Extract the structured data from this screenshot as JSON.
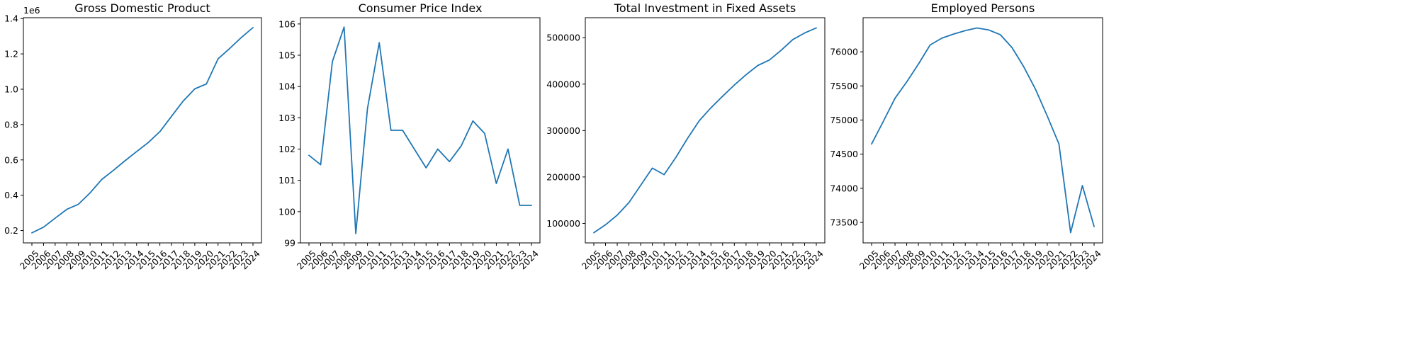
{
  "chart_data": [
    {
      "type": "line",
      "title": "Gross Domestic Product",
      "xlabel": "",
      "ylabel": "",
      "y_multiplier_label": "1e6",
      "grid": false,
      "x": [
        "2005",
        "2006",
        "2007",
        "2008",
        "2009",
        "2010",
        "2011",
        "2012",
        "2013",
        "2014",
        "2015",
        "2016",
        "2017",
        "2018",
        "2019",
        "2020",
        "2021",
        "2022",
        "2023",
        "2024"
      ],
      "values": [
        0.187,
        0.219,
        0.27,
        0.32,
        0.349,
        0.413,
        0.489,
        0.54,
        0.595,
        0.647,
        0.698,
        0.76,
        0.847,
        0.933,
        1.002,
        1.03,
        1.172,
        1.231,
        1.293,
        1.349
      ],
      "ylim": [
        0.13,
        1.405
      ],
      "yticks": [
        0.2,
        0.4,
        0.6,
        0.8,
        1.0,
        1.2,
        1.4
      ],
      "ytick_labels": [
        "0.2",
        "0.4",
        "0.6",
        "0.8",
        "1.0",
        "1.2",
        "1.4"
      ]
    },
    {
      "type": "line",
      "title": "Consumer Price Index",
      "xlabel": "",
      "ylabel": "",
      "grid": false,
      "x": [
        "2005",
        "2006",
        "2007",
        "2008",
        "2009",
        "2010",
        "2011",
        "2012",
        "2013",
        "2014",
        "2015",
        "2016",
        "2017",
        "2018",
        "2019",
        "2020",
        "2021",
        "2022",
        "2023",
        "2024"
      ],
      "values": [
        101.8,
        101.5,
        104.8,
        105.9,
        99.3,
        103.3,
        105.4,
        102.6,
        102.6,
        102.0,
        101.4,
        102.0,
        101.6,
        102.1,
        102.9,
        102.5,
        100.9,
        102.0,
        100.2,
        100.2
      ],
      "ylim": [
        99.0,
        106.2
      ],
      "yticks": [
        99,
        100,
        101,
        102,
        103,
        104,
        105,
        106
      ],
      "ytick_labels": [
        "99",
        "100",
        "101",
        "102",
        "103",
        "104",
        "105",
        "106"
      ]
    },
    {
      "type": "line",
      "title": "Total Investment in Fixed Assets",
      "xlabel": "",
      "ylabel": "",
      "grid": false,
      "x": [
        "2005",
        "2006",
        "2007",
        "2008",
        "2009",
        "2010",
        "2011",
        "2012",
        "2013",
        "2014",
        "2015",
        "2016",
        "2017",
        "2018",
        "2019",
        "2020",
        "2021",
        "2022",
        "2023",
        "2024"
      ],
      "values": [
        80000,
        97000,
        118000,
        145000,
        182000,
        219000,
        205000,
        242000,
        283000,
        321000,
        349000,
        374000,
        398000,
        420000,
        440000,
        452000,
        473000,
        496000,
        510000,
        521000
      ],
      "ylim": [
        58000,
        543000
      ],
      "yticks": [
        100000,
        200000,
        300000,
        400000,
        500000
      ],
      "ytick_labels": [
        "100000",
        "200000",
        "300000",
        "400000",
        "500000"
      ]
    },
    {
      "type": "line",
      "title": "Employed Persons",
      "xlabel": "",
      "ylabel": "",
      "grid": false,
      "x": [
        "2005",
        "2006",
        "2007",
        "2008",
        "2009",
        "2010",
        "2011",
        "2012",
        "2013",
        "2014",
        "2015",
        "2016",
        "2017",
        "2018",
        "2019",
        "2020",
        "2021",
        "2022",
        "2023",
        "2024"
      ],
      "values": [
        74650,
        74980,
        75320,
        75560,
        75820,
        76100,
        76200,
        76260,
        76310,
        76350,
        76320,
        76250,
        76060,
        75780,
        75450,
        75060,
        74650,
        73350,
        74040,
        73440
      ],
      "ylim": [
        73200,
        76500
      ],
      "yticks": [
        73500,
        74000,
        74500,
        75000,
        75500,
        76000
      ],
      "ytick_labels": [
        "73500",
        "74000",
        "74500",
        "75000",
        "75500",
        "76000"
      ]
    }
  ]
}
